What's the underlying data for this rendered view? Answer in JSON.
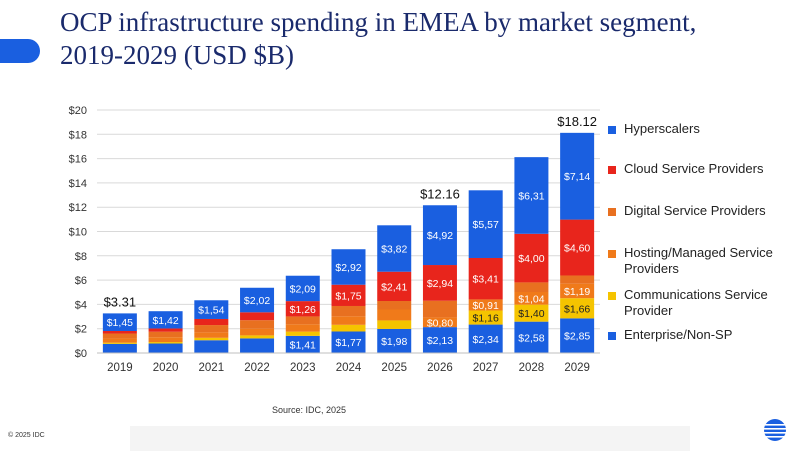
{
  "header": {
    "title": "OCP infrastructure spending in EMEA by market segment, 2019-2029 (USD $B)"
  },
  "chart_data": {
    "type": "bar",
    "stacked": true,
    "categories": [
      "2019",
      "2020",
      "2021",
      "2022",
      "2023",
      "2024",
      "2025",
      "2026",
      "2027",
      "2028",
      "2029"
    ],
    "ylim": [
      0,
      20
    ],
    "yticks": [
      "$0",
      "$2",
      "$4",
      "$6",
      "$8",
      "$10",
      "$12",
      "$14",
      "$16",
      "$18",
      "$20"
    ],
    "grid": true,
    "legend_position": "right",
    "series": [
      {
        "name": "Enterprise/Non-SP",
        "color": "#1a5fe0",
        "values": [
          0.75,
          0.78,
          1.05,
          1.2,
          1.41,
          1.77,
          1.98,
          2.13,
          2.34,
          2.58,
          2.85
        ],
        "labels": [
          "",
          "",
          "",
          "",
          "$1,41",
          "$1,77",
          "$1,98",
          "$2,13",
          "$2,34",
          "$2,58",
          "$2,85"
        ]
      },
      {
        "name": "Communications Service Provider",
        "color": "#f5c400",
        "values": [
          0.1,
          0.12,
          0.2,
          0.25,
          0.35,
          0.55,
          0.7,
          0.0,
          1.16,
          1.4,
          1.66
        ],
        "labels": [
          "",
          "",
          "",
          "",
          "",
          "",
          "",
          "",
          "$1,16",
          "$1,40",
          "$1,66"
        ]
      },
      {
        "name": "Hosting/Managed Service Providers",
        "color": "#f07a1a",
        "values": [
          0.35,
          0.4,
          0.45,
          0.55,
          0.6,
          0.7,
          0.9,
          0.8,
          0.91,
          1.04,
          1.19
        ],
        "labels": [
          "",
          "",
          "",
          "",
          "",
          "",
          "",
          "$0,80",
          "$0,91",
          "$1,04",
          "$1,19"
        ]
      },
      {
        "name": "Digital Service Providers",
        "color": "#e87020",
        "values": [
          0.4,
          0.45,
          0.6,
          0.7,
          0.65,
          0.85,
          0.7,
          1.37,
          0.0,
          0.79,
          0.68
        ],
        "labels": [
          "",
          "",
          "",
          "",
          "",
          "",
          "",
          "",
          "",
          "",
          ""
        ]
      },
      {
        "name": "Cloud Service Providers",
        "color": "#e8251c",
        "values": [
          0.21,
          0.27,
          0.5,
          0.65,
          1.26,
          1.75,
          2.41,
          2.94,
          3.41,
          4.0,
          4.6
        ],
        "labels": [
          "",
          "",
          "",
          "",
          "$1,26",
          "$1,75",
          "$2,41",
          "$2,94",
          "$3,41",
          "$4,00",
          "$4,60"
        ]
      },
      {
        "name": "Hyperscalers",
        "color": "#1a5fe0",
        "values": [
          1.45,
          1.42,
          1.54,
          2.02,
          2.09,
          2.92,
          3.82,
          4.92,
          5.57,
          6.31,
          7.14
        ],
        "labels": [
          "$1,45",
          "$1,42",
          "$1,54",
          "$2,02",
          "$2,09",
          "$2,92",
          "$3,82",
          "$4,92",
          "$5,57",
          "$6,31",
          "$7,14"
        ]
      }
    ],
    "totals": [
      {
        "category": "2019",
        "label": "$3.31"
      },
      {
        "category": "2026",
        "label": "$12.16"
      },
      {
        "category": "2029",
        "label": "$18.12"
      }
    ]
  },
  "legend": {
    "items": [
      {
        "label": "Hyperscalers",
        "color": "#1a5fe0"
      },
      {
        "label": "Cloud Service Providers",
        "color": "#e8251c"
      },
      {
        "label": "Digital Service Providers",
        "color": "#e87020"
      },
      {
        "label": "Hosting/Managed Service Providers",
        "color": "#f07a1a"
      },
      {
        "label": "Communications Service Provider",
        "color": "#f5c400"
      },
      {
        "label": "Enterprise/Non-SP",
        "color": "#1a5fe0"
      }
    ]
  },
  "footer": {
    "source": "Source: IDC, 2025",
    "copyright": "© 2025 IDC"
  },
  "icons": {
    "logo": "idc-globe-icon"
  }
}
